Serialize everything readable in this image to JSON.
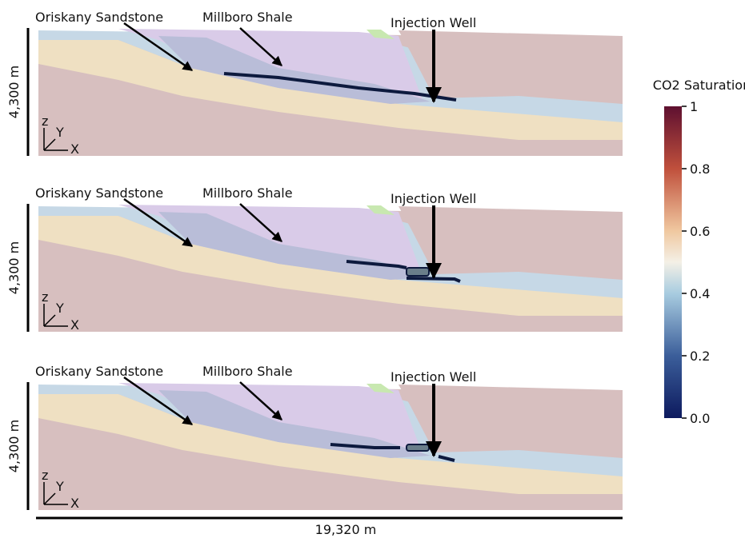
{
  "panels": [
    {
      "labels": [
        "Oriskany Sandstone",
        "Millboro Shale",
        "Injection Well"
      ],
      "height_label": "4,300 m"
    },
    {
      "labels": [
        "Oriskany Sandstone",
        "Millboro Shale",
        "Injection Well"
      ],
      "height_label": "4,300 m"
    },
    {
      "labels": [
        "Oriskany Sandstone",
        "Millboro Shale",
        "Injection Well"
      ],
      "height_label": "4,300 m"
    }
  ],
  "width_label": "19,320 m",
  "colorbar": {
    "title": "CO2 Saturation",
    "ticks": [
      {
        "value": 0,
        "label": "0.0"
      },
      0.2,
      0.4,
      0.6,
      0.8,
      1
    ]
  }
}
